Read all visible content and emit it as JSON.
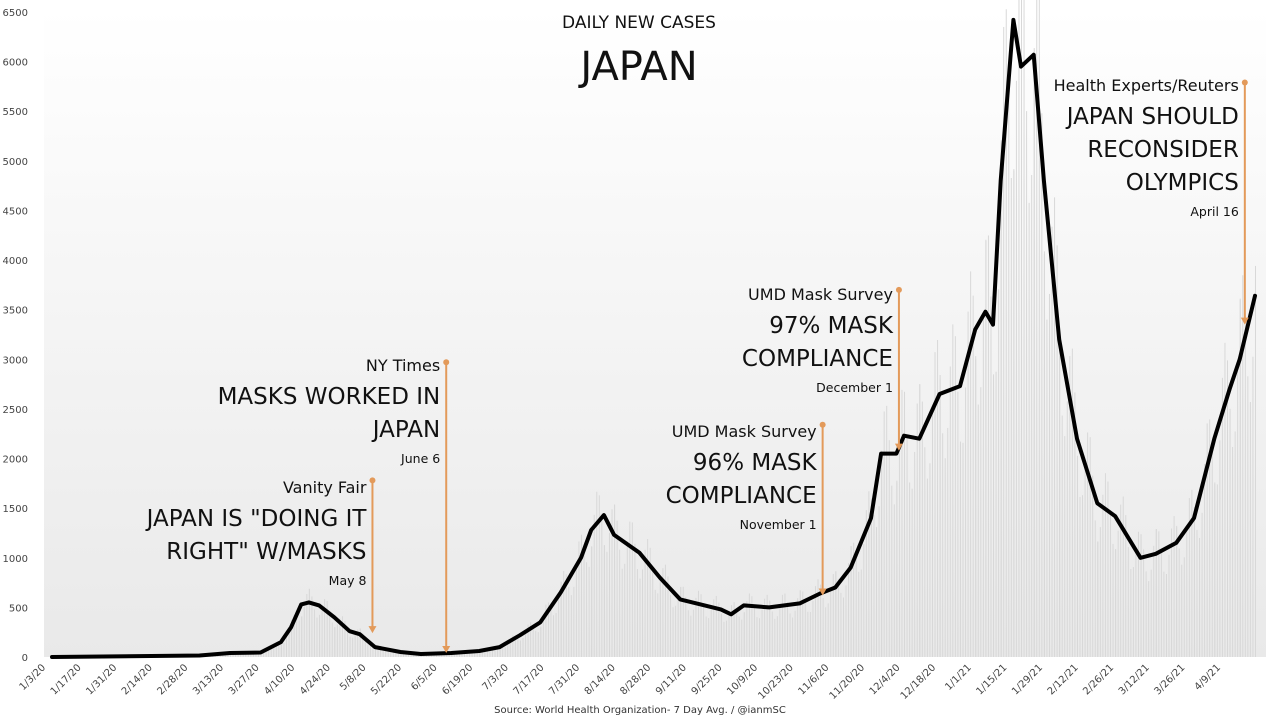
{
  "chart_data": {
    "type": "line",
    "title": "DAILY NEW CASES",
    "subtitle": "JAPAN",
    "source": "Source: World Health Organization- 7 Day Avg. / @ianmSC",
    "xlabel": "",
    "ylabel": "",
    "ylim": [
      0,
      6500
    ],
    "yticks": [
      0,
      500,
      1000,
      1500,
      2000,
      2500,
      3000,
      3500,
      4000,
      4500,
      5000,
      5500,
      6000,
      6500
    ],
    "xlim": [
      "2020-01-03",
      "2021-04-20"
    ],
    "xtick_labels": [
      "1/3/20",
      "1/17/20",
      "1/31/20",
      "2/14/20",
      "2/28/20",
      "3/13/20",
      "3/27/20",
      "4/10/20",
      "4/24/20",
      "5/8/20",
      "5/22/20",
      "6/5/20",
      "6/19/20",
      "7/3/20",
      "7/17/20",
      "7/31/20",
      "8/14/20",
      "8/28/20",
      "9/11/20",
      "9/25/20",
      "10/9/20",
      "10/23/20",
      "11/6/20",
      "11/20/20",
      "12/4/20",
      "12/18/20",
      "1/1/21",
      "1/15/21",
      "1/29/21",
      "2/12/21",
      "2/26/21",
      "3/12/21",
      "3/26/21",
      "4/9/21"
    ],
    "grid": false,
    "line_color": "#000000",
    "annotation_color": "#e39a5a",
    "series": [
      {
        "x": [
          "2020-01-03",
          "2020-03-01",
          "2020-03-13",
          "2020-03-25",
          "2020-04-02",
          "2020-04-06",
          "2020-04-10",
          "2020-04-13",
          "2020-04-17",
          "2020-04-23",
          "2020-04-29",
          "2020-05-03",
          "2020-05-09",
          "2020-05-19",
          "2020-05-27",
          "2020-06-08",
          "2020-06-19",
          "2020-06-27",
          "2020-07-05",
          "2020-07-13",
          "2020-07-21",
          "2020-07-29",
          "2020-08-02",
          "2020-08-07",
          "2020-08-11",
          "2020-08-21",
          "2020-08-29",
          "2020-09-06",
          "2020-09-14",
          "2020-09-22",
          "2020-09-26",
          "2020-10-01",
          "2020-10-11",
          "2020-10-23",
          "2020-10-31",
          "2020-11-06",
          "2020-11-12",
          "2020-11-20",
          "2020-11-24",
          "2020-11-30",
          "2020-12-03",
          "2020-12-09",
          "2020-12-17",
          "2020-12-25",
          "2020-12-31",
          "2021-01-04",
          "2021-01-07",
          "2021-01-10",
          "2021-01-15",
          "2021-01-18",
          "2021-01-23",
          "2021-01-27",
          "2021-02-02",
          "2021-02-09",
          "2021-02-17",
          "2021-02-24",
          "2021-03-06",
          "2021-03-12",
          "2021-03-20",
          "2021-03-27",
          "2021-04-04",
          "2021-04-10",
          "2021-04-14",
          "2021-04-20"
        ],
        "y": [
          0,
          15,
          40,
          45,
          150,
          300,
          530,
          550,
          520,
          400,
          260,
          230,
          100,
          50,
          30,
          40,
          60,
          100,
          220,
          350,
          650,
          1000,
          1280,
          1430,
          1230,
          1050,
          800,
          580,
          530,
          480,
          430,
          520,
          500,
          540,
          640,
          700,
          900,
          1400,
          2050,
          2050,
          2230,
          2200,
          2650,
          2730,
          3300,
          3480,
          3350,
          4800,
          6420,
          5950,
          6070,
          4800,
          3200,
          2200,
          1550,
          1420,
          1000,
          1040,
          1150,
          1400,
          2200,
          2700,
          3000,
          3640
        ]
      }
    ],
    "annotations": [
      {
        "date": "2020-05-08",
        "source": "Vanity Fair",
        "headline": [
          "JAPAN IS \"DOING IT",
          "RIGHT\" W/MASKS"
        ],
        "date_label": "May 8"
      },
      {
        "date": "2020-06-06",
        "source": "NY Times",
        "headline": [
          "MASKS WORKED IN",
          "JAPAN"
        ],
        "date_label": "June 6"
      },
      {
        "date": "2020-11-01",
        "source": "UMD Mask Survey",
        "headline": [
          "96% MASK",
          "COMPLIANCE"
        ],
        "date_label": "November 1"
      },
      {
        "date": "2020-12-01",
        "source": "UMD Mask Survey",
        "headline": [
          "97% MASK",
          "COMPLIANCE"
        ],
        "date_label": "December 1"
      },
      {
        "date": "2021-04-16",
        "source": "Health Experts/Reuters",
        "headline": [
          "JAPAN SHOULD",
          "RECONSIDER",
          "OLYMPICS"
        ],
        "date_label": "April 16"
      }
    ]
  }
}
